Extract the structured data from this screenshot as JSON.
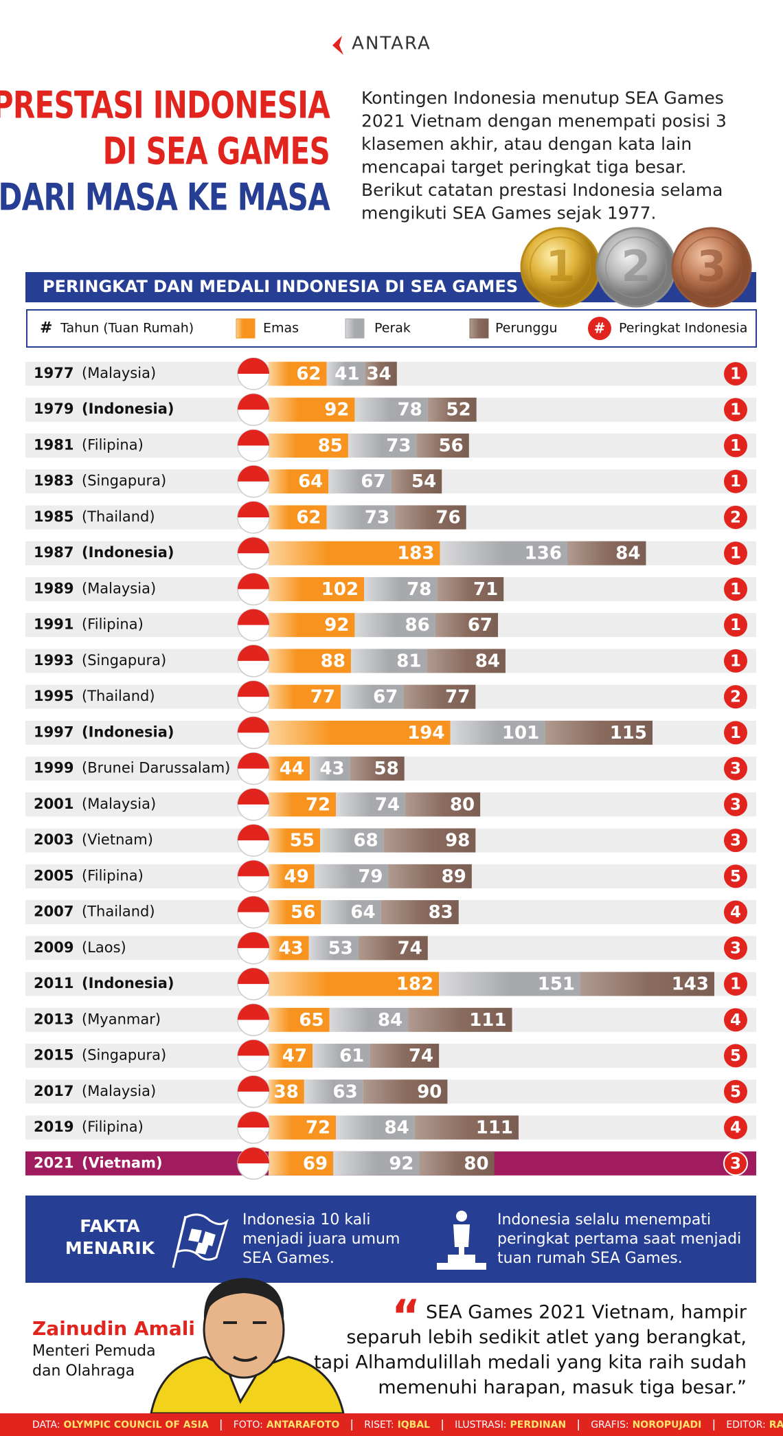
{
  "logo": "ANTARA",
  "title_lines": [
    "PRESTASI INDONESIA",
    "DI SEA GAMES",
    "DARI MASA KE MASA"
  ],
  "intro_lines": [
    "Kontingen Indonesia menutup SEA Games",
    "2021 Vietnam dengan menempati posisi 3",
    "klasemen akhir, atau dengan kata lain",
    "mencapai target peringkat tiga besar.",
    "Berikut catatan prestasi Indonesia selama",
    "mengikuti SEA Games sejak 1977."
  ],
  "medals": [
    "1",
    "2",
    "3"
  ],
  "chart_data": {
    "type": "bar",
    "stacked": true,
    "orientation": "horizontal",
    "title": "PERINGKAT DAN MEDALI INDONESIA DI SEA GAMES",
    "legend": {
      "year_symbol": "#",
      "year_label": "Tahun (Tuan Rumah)",
      "rank_symbol": "#",
      "rank_label": "Peringkat Indonesia"
    },
    "categories": [
      "1977",
      "1979",
      "1981",
      "1983",
      "1985",
      "1987",
      "1989",
      "1991",
      "1993",
      "1995",
      "1997",
      "1999",
      "2001",
      "2003",
      "2005",
      "2007",
      "2009",
      "2011",
      "2013",
      "2015",
      "2017",
      "2019",
      "2021"
    ],
    "hosts": [
      "(Malaysia)",
      "(Indonesia)",
      "(Filipina)",
      "(Singapura)",
      "(Thailand)",
      "(Indonesia)",
      "(Malaysia)",
      "(Filipina)",
      "(Singapura)",
      "(Thailand)",
      "(Indonesia)",
      "(Brunei Darussalam)",
      "(Malaysia)",
      "(Vietnam)",
      "(Filipina)",
      "(Thailand)",
      "(Laos)",
      "(Indonesia)",
      "(Myanmar)",
      "(Singapura)",
      "(Malaysia)",
      "(Filipina)",
      "(Vietnam)"
    ],
    "bold_rows": [
      1,
      5,
      10,
      17
    ],
    "highlight_row": 22,
    "series": [
      {
        "name": "Emas",
        "color": "#f7931e",
        "values": [
          62,
          92,
          85,
          64,
          62,
          183,
          102,
          92,
          88,
          77,
          194,
          44,
          72,
          55,
          49,
          56,
          43,
          182,
          65,
          47,
          38,
          72,
          69
        ]
      },
      {
        "name": "Perak",
        "color": "#a7a9ac",
        "values": [
          41,
          78,
          73,
          67,
          73,
          136,
          78,
          86,
          81,
          67,
          101,
          43,
          74,
          68,
          79,
          64,
          53,
          151,
          84,
          61,
          63,
          84,
          92
        ]
      },
      {
        "name": "Perunggu",
        "color": "#8a6c5f",
        "values": [
          34,
          52,
          56,
          54,
          76,
          84,
          71,
          67,
          84,
          77,
          115,
          58,
          80,
          98,
          89,
          83,
          74,
          143,
          111,
          74,
          90,
          111,
          80
        ]
      }
    ],
    "ranks": [
      1,
      1,
      1,
      1,
      2,
      1,
      1,
      1,
      1,
      2,
      1,
      3,
      3,
      3,
      5,
      4,
      3,
      1,
      4,
      5,
      5,
      4,
      3
    ]
  },
  "facts": {
    "heading_lines": [
      "FAKTA",
      "MENARIK"
    ],
    "items": [
      [
        "Indonesia 10 kali",
        "menjadi juara umum",
        "SEA Games."
      ],
      [
        "Indonesia selalu menempati",
        "peringkat pertama saat menjadi",
        "tuan rumah SEA Games."
      ]
    ]
  },
  "person": {
    "name": "Zainudin Amali",
    "role_lines": [
      "Menteri Pemuda",
      "dan Olahraga"
    ]
  },
  "quote_mark": "“",
  "quote_lines": [
    "SEA Games 2021 Vietnam, hampir",
    "separuh lebih sedikit atlet yang berangkat,",
    "tapi Alhamdulillah medali yang kita raih sudah",
    "memenuhi harapan, masuk tiga besar.”"
  ],
  "footer": [
    {
      "label": "DATA:",
      "value": "OLYMPIC COUNCIL OF ASIA"
    },
    {
      "label": "FOTO:",
      "value": "ANTARAFOTO"
    },
    {
      "label": "RISET:",
      "value": "IQBAL"
    },
    {
      "label": "ILUSTRASI:",
      "value": "PERDINAN"
    },
    {
      "label": "GRAFIS:",
      "value": "NOROPUJADI"
    },
    {
      "label": "EDITOR:",
      "value": "RANY"
    }
  ]
}
